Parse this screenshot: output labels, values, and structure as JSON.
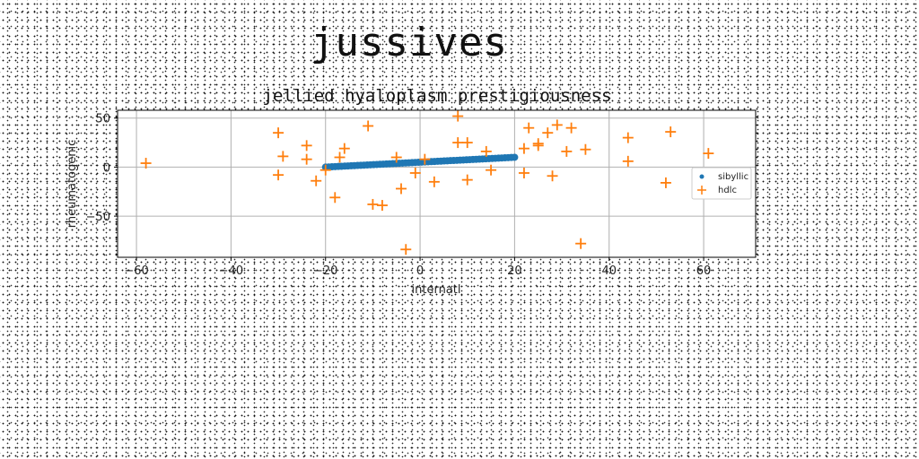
{
  "main_title": "jussives",
  "chart_data": {
    "type": "scatter",
    "title": "jellied hyaloplasm prestigiousness",
    "xlabel": "internatl",
    "ylabel": "rheumatogenic",
    "xlim": [
      -64,
      71
    ],
    "ylim": [
      -92,
      58
    ],
    "xticks": [
      -60,
      -40,
      -20,
      0,
      20,
      40,
      60
    ],
    "yticks": [
      50,
      0,
      -50
    ],
    "xtick_labels": [
      "−60",
      "−40",
      "−20",
      "0",
      "20",
      "40",
      "60"
    ],
    "ytick_labels": [
      "50",
      "0",
      "−50"
    ],
    "grid": true,
    "legend_position": "right",
    "series": [
      {
        "name": "sibyllic",
        "marker": "dot",
        "color": "#1f77b4",
        "line": {
          "x_start": -20,
          "x_end": 20,
          "y_start": 0,
          "y_end": 10,
          "n": 60
        }
      },
      {
        "name": "hdlc",
        "marker": "plus",
        "color": "#ff7f0e",
        "points": [
          [
            -58,
            4
          ],
          [
            -30,
            35
          ],
          [
            -29,
            11
          ],
          [
            -30,
            -8
          ],
          [
            -24,
            22
          ],
          [
            -24,
            8
          ],
          [
            -22,
            -14
          ],
          [
            -20,
            -3
          ],
          [
            -18,
            -31
          ],
          [
            -17,
            10
          ],
          [
            -16,
            19
          ],
          [
            -11,
            42
          ],
          [
            -10,
            -38
          ],
          [
            -8,
            -39
          ],
          [
            -5,
            10
          ],
          [
            -4,
            -22
          ],
          [
            -3,
            -84
          ],
          [
            -1,
            -6
          ],
          [
            1,
            8
          ],
          [
            3,
            -15
          ],
          [
            8,
            52
          ],
          [
            8,
            25
          ],
          [
            10,
            25
          ],
          [
            10,
            -13
          ],
          [
            14,
            16
          ],
          [
            15,
            -3
          ],
          [
            22,
            19
          ],
          [
            22,
            -6
          ],
          [
            23,
            40
          ],
          [
            25,
            22
          ],
          [
            25,
            24
          ],
          [
            27,
            35
          ],
          [
            28,
            -9
          ],
          [
            29,
            43
          ],
          [
            31,
            16
          ],
          [
            32,
            40
          ],
          [
            34,
            -78
          ],
          [
            35,
            18
          ],
          [
            44,
            30
          ],
          [
            44,
            6
          ],
          [
            52,
            -16
          ],
          [
            53,
            36
          ],
          [
            61,
            14
          ]
        ]
      }
    ]
  }
}
